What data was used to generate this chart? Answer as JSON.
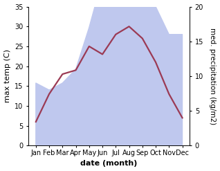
{
  "months": [
    "Jan",
    "Feb",
    "Mar",
    "Apr",
    "May",
    "Jun",
    "Jul",
    "Aug",
    "Sep",
    "Oct",
    "Nov",
    "Dec"
  ],
  "temperature": [
    6,
    13,
    18,
    19,
    25,
    23,
    28,
    30,
    27,
    21,
    13,
    7
  ],
  "precipitation": [
    9,
    8,
    9,
    11,
    17,
    24,
    35,
    34,
    29,
    20,
    16,
    16
  ],
  "temp_color": "#9b3a54",
  "precip_fill_color": "#bfc8ee",
  "temp_ylim_min": 0,
  "temp_ylim_max": 35,
  "temp_yticks": [
    0,
    5,
    10,
    15,
    20,
    25,
    30,
    35
  ],
  "precip_ylim_min": 0,
  "precip_ylim_max": 20,
  "precip_yticks": [
    0,
    5,
    10,
    15,
    20
  ],
  "xlabel": "date (month)",
  "ylabel_left": "max temp (C)",
  "ylabel_right": "med. precipitation (kg/m2)",
  "label_fontsize": 8,
  "tick_fontsize": 7,
  "line_width": 1.6
}
